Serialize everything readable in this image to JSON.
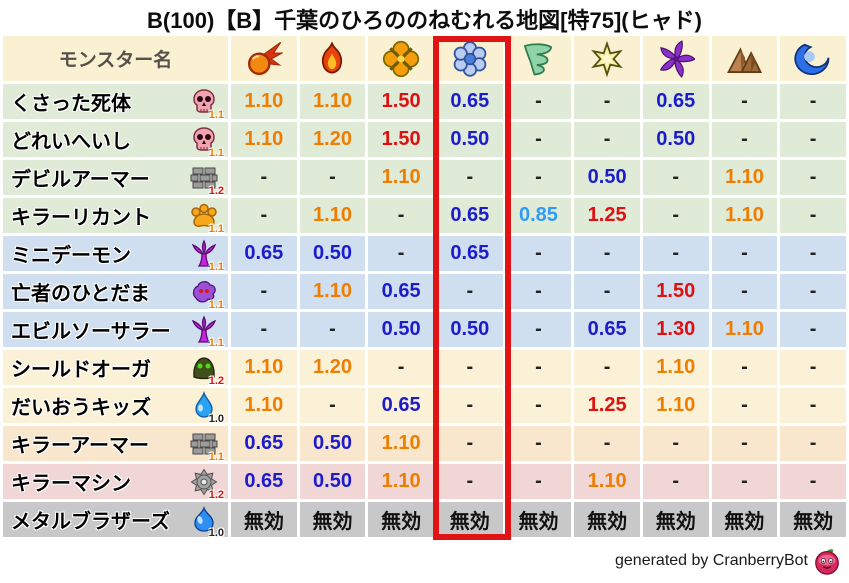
{
  "title": "B(100)【B】千葉のひろののねむれる地図[特75](ヒャド)",
  "footer": {
    "text": "generated by CranberryBot",
    "icon": "cranberry-icon"
  },
  "palette": {
    "header_bg": "#faf0d2",
    "header_text_color": "#55504a",
    "highlight_border": "#e01414",
    "title_color": "#0d0d0d",
    "cell_gap": "#ffffff"
  },
  "value_colors": {
    "1.50": "#dd1111",
    "1.30": "#dd1111",
    "1.25": "#dd1111",
    "1.20": "#ef7d00",
    "1.10": "#ef7d00",
    "0.85": "#2f9bf5",
    "0.65": "#1c1ccd",
    "0.50": "#1c1ccd",
    "-": "#222222",
    "無効": "#111111"
  },
  "highlight": {
    "column_index": 4,
    "element": "ice",
    "border_color": "#e01414"
  },
  "chart_data": {
    "type": "table",
    "title": "B(100)【B】千葉のひろののねむれる地図[特75](ヒャド)",
    "name_header": "モンスター名",
    "element_columns": [
      {
        "icon": "fireball-icon",
        "name": "fire"
      },
      {
        "icon": "flame-icon",
        "name": "flame"
      },
      {
        "icon": "explosion-icon",
        "name": "explosion"
      },
      {
        "icon": "snowflake-icon",
        "name": "ice",
        "highlighted": true
      },
      {
        "icon": "tornado-icon",
        "name": "wind"
      },
      {
        "icon": "star-icon",
        "name": "light"
      },
      {
        "icon": "pinwheel-icon",
        "name": "dark"
      },
      {
        "icon": "mountain-icon",
        "name": "earth"
      },
      {
        "icon": "wave-icon",
        "name": "water"
      }
    ],
    "rows": [
      {
        "name": "くさった死体",
        "icon": "skull-icon",
        "level_multiplier": "1.1",
        "multiplier_color": "#ef7d00",
        "row_bg": "#dfead7",
        "values": [
          "1.10",
          "1.10",
          "1.50",
          "0.65",
          "-",
          "-",
          "0.65",
          "-",
          "-"
        ]
      },
      {
        "name": "どれいへいし",
        "icon": "skull-icon",
        "level_multiplier": "1.1",
        "multiplier_color": "#ef7d00",
        "row_bg": "#dfead7",
        "values": [
          "1.10",
          "1.20",
          "1.50",
          "0.50",
          "-",
          "-",
          "0.50",
          "-",
          "-"
        ]
      },
      {
        "name": "デビルアーマー",
        "icon": "brick-icon",
        "level_multiplier": "1.2",
        "multiplier_color": "#dd1111",
        "row_bg": "#dfead7",
        "values": [
          "-",
          "-",
          "1.10",
          "-",
          "-",
          "0.50",
          "-",
          "1.10",
          "-"
        ]
      },
      {
        "name": "キラーリカント",
        "icon": "paw-icon",
        "level_multiplier": "1.1",
        "multiplier_color": "#ef7d00",
        "row_bg": "#dfead7",
        "values": [
          "-",
          "1.10",
          "-",
          "0.65",
          "0.85",
          "1.25",
          "-",
          "1.10",
          "-"
        ]
      },
      {
        "name": "ミニデーモン",
        "icon": "trident-icon",
        "level_multiplier": "1.1",
        "multiplier_color": "#ef7d00",
        "row_bg": "#cfdfef",
        "values": [
          "0.65",
          "0.50",
          "-",
          "0.65",
          "-",
          "-",
          "-",
          "-",
          "-"
        ]
      },
      {
        "name": "亡者のひとだま",
        "icon": "ghost-icon",
        "level_multiplier": "1.1",
        "multiplier_color": "#ef7d00",
        "row_bg": "#cfdfef",
        "values": [
          "-",
          "1.10",
          "0.65",
          "-",
          "-",
          "-",
          "1.50",
          "-",
          "-"
        ]
      },
      {
        "name": "エビルソーサラー",
        "icon": "trident-icon",
        "level_multiplier": "1.1",
        "multiplier_color": "#ef7d00",
        "row_bg": "#cfdfef",
        "values": [
          "-",
          "-",
          "0.50",
          "0.50",
          "-",
          "0.65",
          "1.30",
          "1.10",
          "-"
        ]
      },
      {
        "name": "シールドオーガ",
        "icon": "helmet-icon",
        "level_multiplier": "1.2",
        "multiplier_color": "#dd1111",
        "row_bg": "#fbf1d6",
        "values": [
          "1.10",
          "1.20",
          "-",
          "-",
          "-",
          "-",
          "1.10",
          "-",
          "-"
        ]
      },
      {
        "name": "だいおうキッズ",
        "icon": "droplet-icon",
        "level_multiplier": "1.0",
        "multiplier_color": "#222222",
        "row_bg": "#fbf1d6",
        "values": [
          "1.10",
          "-",
          "0.65",
          "-",
          "-",
          "1.25",
          "1.10",
          "-",
          "-"
        ]
      },
      {
        "name": "キラーアーマー",
        "icon": "brick-icon",
        "level_multiplier": "1.1",
        "multiplier_color": "#ef7d00",
        "row_bg": "#f8e7cc",
        "values": [
          "0.65",
          "0.50",
          "1.10",
          "-",
          "-",
          "-",
          "-",
          "-",
          "-"
        ]
      },
      {
        "name": "キラーマシン",
        "icon": "gear-icon",
        "level_multiplier": "1.2",
        "multiplier_color": "#dd1111",
        "row_bg": "#f1d6d6",
        "values": [
          "0.65",
          "0.50",
          "1.10",
          "-",
          "-",
          "1.10",
          "-",
          "-",
          "-"
        ]
      },
      {
        "name": "メタルブラザーズ",
        "icon": "slime-icon",
        "level_multiplier": "1.0",
        "multiplier_color": "#222222",
        "row_bg": "#c8c8c8",
        "values": [
          "無効",
          "無効",
          "無効",
          "無効",
          "無効",
          "無効",
          "無効",
          "無効",
          "無効"
        ]
      }
    ]
  }
}
